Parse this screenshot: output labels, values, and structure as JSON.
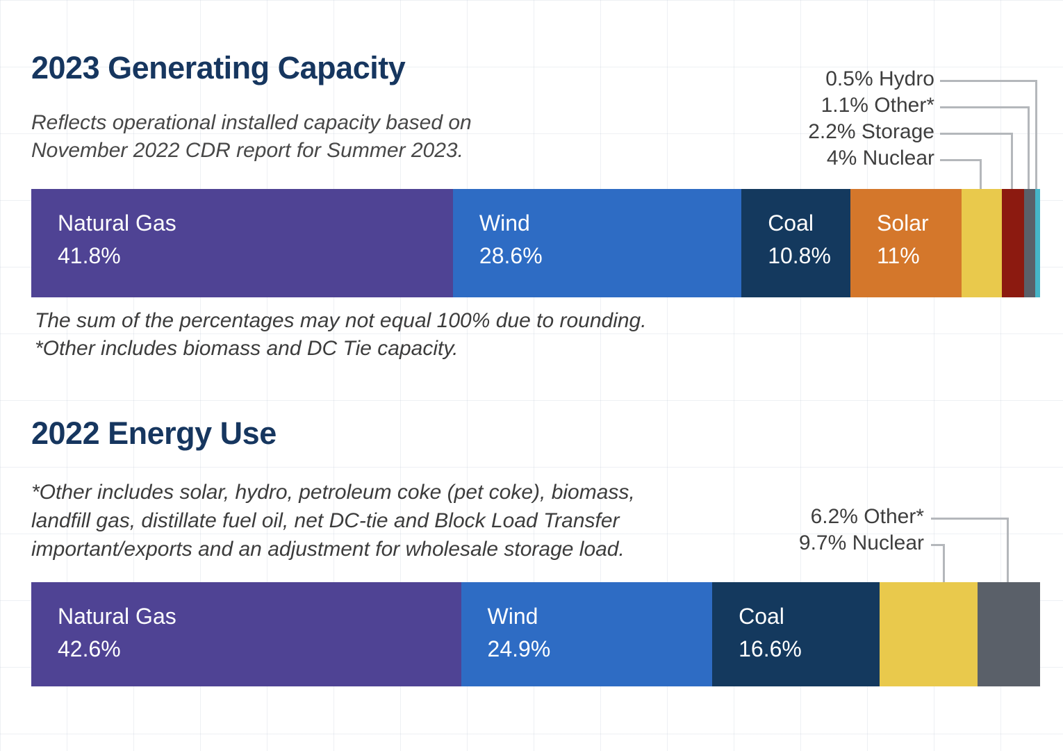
{
  "page": {
    "background": "#ffffff",
    "title_color": "#16365F",
    "connector_color": "#B4B7BB"
  },
  "chart_data": [
    {
      "type": "bar",
      "variant": "stacked-horizontal-100",
      "title": "2023 Generating Capacity",
      "subtitle_lines": [
        "Reflects operational installed capacity based on",
        "November 2022 CDR report for Summer 2023."
      ],
      "footnote_lines": [
        "The sum of the percentages may not equal 100% due to rounding.",
        "*Other includes biomass and DC Tie capacity."
      ],
      "unit": "%",
      "xlim": [
        0,
        100
      ],
      "segments": [
        {
          "label": "Natural Gas",
          "value": 41.8,
          "display": "41.8%",
          "color": "#4F4394",
          "label_inside": true
        },
        {
          "label": "Wind",
          "value": 28.6,
          "display": "28.6%",
          "color": "#2E6CC4",
          "label_inside": true
        },
        {
          "label": "Coal",
          "value": 10.8,
          "display": "10.8%",
          "color": "#14395E",
          "label_inside": true
        },
        {
          "label": "Solar",
          "value": 11,
          "display": "11%",
          "color": "#D4772B",
          "label_inside": true
        },
        {
          "label": "Nuclear",
          "value": 4,
          "display": "4%",
          "color": "#E9C94C",
          "label_inside": false
        },
        {
          "label": "Storage",
          "value": 2.2,
          "display": "2.2%",
          "color": "#8C1A10",
          "label_inside": false
        },
        {
          "label": "Other*",
          "value": 1.1,
          "display": "1.1%",
          "color": "#5A6069",
          "label_inside": false
        },
        {
          "label": "Hydro",
          "value": 0.5,
          "display": "0.5%",
          "color": "#45B5C8",
          "label_inside": false
        }
      ],
      "callouts": [
        {
          "text": "0.5% Hydro",
          "target": "Hydro"
        },
        {
          "text": "1.1% Other*",
          "target": "Other*"
        },
        {
          "text": "2.2% Storage",
          "target": "Storage"
        },
        {
          "text": "4% Nuclear",
          "target": "Nuclear"
        }
      ]
    },
    {
      "type": "bar",
      "variant": "stacked-horizontal-100",
      "title": "2022 Energy Use",
      "note_lines": [
        "*Other includes solar, hydro, petroleum coke (pet coke), biomass,",
        "landfill gas, distillate fuel oil, net DC-tie and Block Load Transfer",
        "important/exports and an adjustment for wholesale storage load."
      ],
      "unit": "%",
      "xlim": [
        0,
        100
      ],
      "segments": [
        {
          "label": "Natural Gas",
          "value": 42.6,
          "display": "42.6%",
          "color": "#4F4394",
          "label_inside": true
        },
        {
          "label": "Wind",
          "value": 24.9,
          "display": "24.9%",
          "color": "#2E6CC4",
          "label_inside": true
        },
        {
          "label": "Coal",
          "value": 16.6,
          "display": "16.6%",
          "color": "#14395E",
          "label_inside": true
        },
        {
          "label": "Nuclear",
          "value": 9.7,
          "display": "9.7%",
          "color": "#E9C94C",
          "label_inside": false
        },
        {
          "label": "Other*",
          "value": 6.2,
          "display": "6.2%",
          "color": "#5A6069",
          "label_inside": false
        }
      ],
      "callouts": [
        {
          "text": "6.2% Other*",
          "target": "Other*"
        },
        {
          "text": "9.7% Nuclear",
          "target": "Nuclear"
        }
      ]
    }
  ]
}
